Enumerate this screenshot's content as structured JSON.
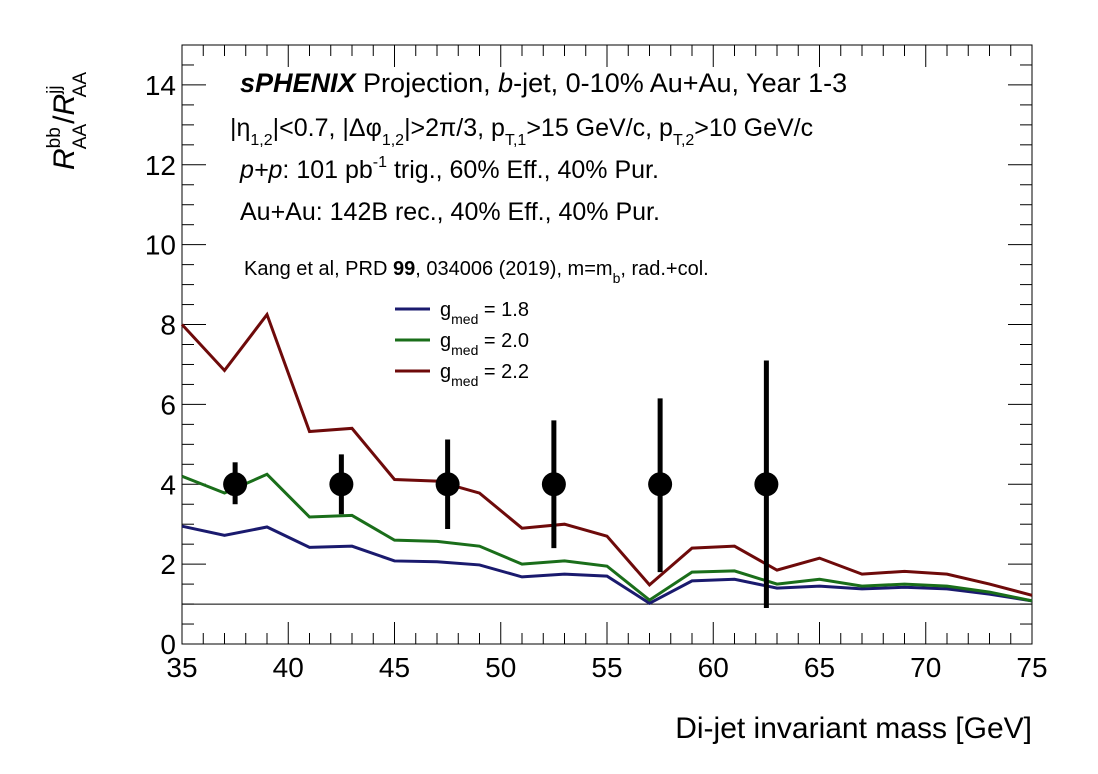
{
  "chart_data": {
    "type": "line",
    "xlabel": "Di-jet invariant mass [GeV]",
    "ylabel": {
      "base1": "R",
      "sup1": "bb",
      "sub1": "AA",
      "sep": "/",
      "base2": "R",
      "sup2": "jj",
      "sub2": "AA"
    },
    "xlim": [
      35,
      75
    ],
    "ylim": [
      0,
      15
    ],
    "x_ticks": [
      35,
      40,
      45,
      50,
      55,
      60,
      65,
      70,
      75
    ],
    "y_ticks": [
      0,
      2,
      4,
      6,
      8,
      10,
      12,
      14
    ],
    "x_tick_labels": [
      "35",
      "40",
      "45",
      "50",
      "55",
      "60",
      "65",
      "70",
      "75"
    ],
    "y_tick_labels": [
      "0",
      "2",
      "4",
      "6",
      "8",
      "10",
      "12",
      "14"
    ],
    "grid": false,
    "reference_line": {
      "y": 1
    },
    "annotations": {
      "line1": {
        "bold_italic": "sPHENIX",
        "part1": " Projection, ",
        "italic": "b",
        "part2": "-jet, 0-10% Au+Au, Year 1-3"
      },
      "line2": {
        "a": "|η",
        "a_sub": "1,2",
        "b": "|<0.7, |Δφ",
        "b_sub": "1,2",
        "c": "|>2π/3, p",
        "c_sub": "T,1",
        "d": ">15 GeV/c, p",
        "d_sub": "T,2",
        "e": ">10 GeV/c"
      },
      "line3": {
        "pp": "p+p",
        "rest1": ": 101 pb",
        "sup": "-1",
        "rest2": " trig., 60% Eff., 40% Pur."
      },
      "line4": "Au+Au: 142B rec., 40% Eff., 40% Pur.",
      "line5": {
        "part1": "Kang et al, PRD ",
        "bold": "99",
        "part2": ", 034006 (2019), m=m",
        "sub": "b",
        "part3": ", rad.+col."
      }
    },
    "legend_position": "center-top",
    "series": [
      {
        "name": {
          "base": "g",
          "sub": "med",
          "value": " = 1.8"
        },
        "color": "#1a1a6e",
        "x": [
          35,
          37,
          39,
          41,
          43,
          45,
          47,
          49,
          51,
          53,
          55,
          57,
          59,
          61,
          63,
          65,
          67,
          69,
          71,
          73,
          75
        ],
        "values": [
          2.95,
          2.72,
          2.93,
          2.42,
          2.45,
          2.08,
          2.06,
          1.98,
          1.68,
          1.75,
          1.7,
          1.02,
          1.58,
          1.62,
          1.4,
          1.45,
          1.38,
          1.42,
          1.38,
          1.25,
          1.08
        ]
      },
      {
        "name": {
          "base": "g",
          "sub": "med",
          "value": " = 2.0"
        },
        "color": "#1a6e1a",
        "x": [
          35,
          37,
          39,
          41,
          43,
          45,
          47,
          49,
          51,
          53,
          55,
          57,
          59,
          61,
          63,
          65,
          67,
          69,
          71,
          73,
          75
        ],
        "values": [
          4.2,
          3.78,
          4.25,
          3.18,
          3.22,
          2.6,
          2.57,
          2.45,
          2.0,
          2.08,
          1.95,
          1.1,
          1.8,
          1.83,
          1.5,
          1.62,
          1.45,
          1.5,
          1.45,
          1.3,
          1.08
        ]
      },
      {
        "name": {
          "base": "g",
          "sub": "med",
          "value": " = 2.2"
        },
        "color": "#6e0a0a",
        "x": [
          35,
          37,
          39,
          41,
          43,
          45,
          47,
          49,
          51,
          53,
          55,
          57,
          59,
          61,
          63,
          65,
          67,
          69,
          71,
          73,
          75
        ],
        "values": [
          8.0,
          6.85,
          8.25,
          5.32,
          5.4,
          4.12,
          4.08,
          3.78,
          2.9,
          3.0,
          2.7,
          1.48,
          2.4,
          2.45,
          1.85,
          2.15,
          1.75,
          1.82,
          1.75,
          1.5,
          1.22
        ]
      }
    ],
    "projection_points": {
      "color": "#000000",
      "x": [
        37.5,
        42.5,
        47.5,
        52.5,
        57.5,
        62.5
      ],
      "y": [
        4,
        4,
        4,
        4,
        4,
        4
      ],
      "err_low": [
        0.5,
        0.75,
        1.12,
        1.6,
        2.2,
        3.1
      ],
      "err_high": [
        0.55,
        0.75,
        1.12,
        1.6,
        2.15,
        3.1
      ]
    }
  }
}
